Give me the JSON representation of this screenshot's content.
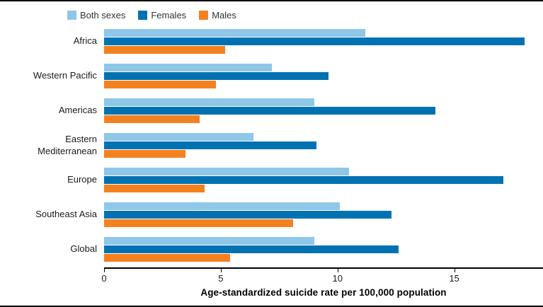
{
  "chart_data": {
    "type": "bar",
    "orientation": "horizontal",
    "title": "",
    "xlabel": "Age-standardized suicide rate per 100,000 population",
    "ylabel": "",
    "categories": [
      "Africa",
      "Western Pacific",
      "Americas",
      "Eastern Mediterranean",
      "Europe",
      "Southeast Asia",
      "Global"
    ],
    "series": [
      {
        "name": "Both sexes",
        "color": "#8FC7E8",
        "values": [
          11.2,
          7.2,
          9.0,
          6.4,
          10.5,
          10.1,
          9.0
        ]
      },
      {
        "name": "Females",
        "color": "#0072B2",
        "values": [
          18.0,
          9.6,
          14.2,
          9.1,
          17.1,
          12.3,
          12.6
        ]
      },
      {
        "name": "Males",
        "color": "#F5801E",
        "values": [
          5.2,
          4.8,
          4.1,
          3.5,
          4.3,
          8.1,
          5.4
        ]
      }
    ],
    "xlim": [
      0,
      18.8
    ],
    "xticks": [
      "0",
      "5",
      "10",
      "15"
    ],
    "grid": false,
    "legend_position": "top-left",
    "axis_color": "#000000",
    "text_color": "#1a1a1a"
  }
}
